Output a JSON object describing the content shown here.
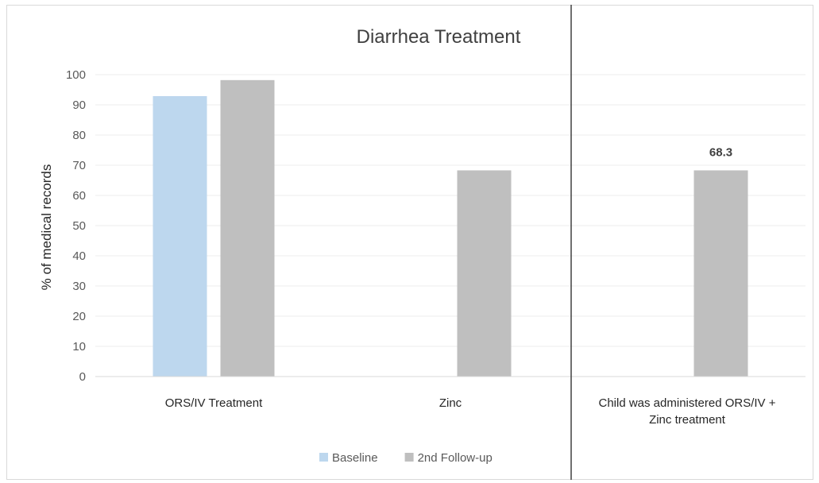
{
  "chart_data": {
    "type": "bar",
    "title": "Diarrhea Treatment",
    "xlabel": "",
    "ylabel": "% of medical records",
    "ylim": [
      0,
      100
    ],
    "yticks": [
      0,
      10,
      20,
      30,
      40,
      50,
      60,
      70,
      80,
      90,
      100
    ],
    "grid": true,
    "legend_position": "bottom",
    "categories": [
      "ORS/IV Treatment",
      "Zinc",
      "Child was administered ORS/IV + Zinc treatment"
    ],
    "series": [
      {
        "name": "Baseline",
        "color": "#bdd7ee",
        "values": [
          92.9,
          null,
          null
        ]
      },
      {
        "name": "2nd Follow-up",
        "color": "#bfbfbf",
        "values": [
          98.2,
          68.3,
          68.3
        ]
      }
    ],
    "data_labels": [
      {
        "category": "Child was administered ORS/IV + Zinc treatment",
        "series": "2nd Follow-up",
        "text": "68.3"
      }
    ]
  }
}
